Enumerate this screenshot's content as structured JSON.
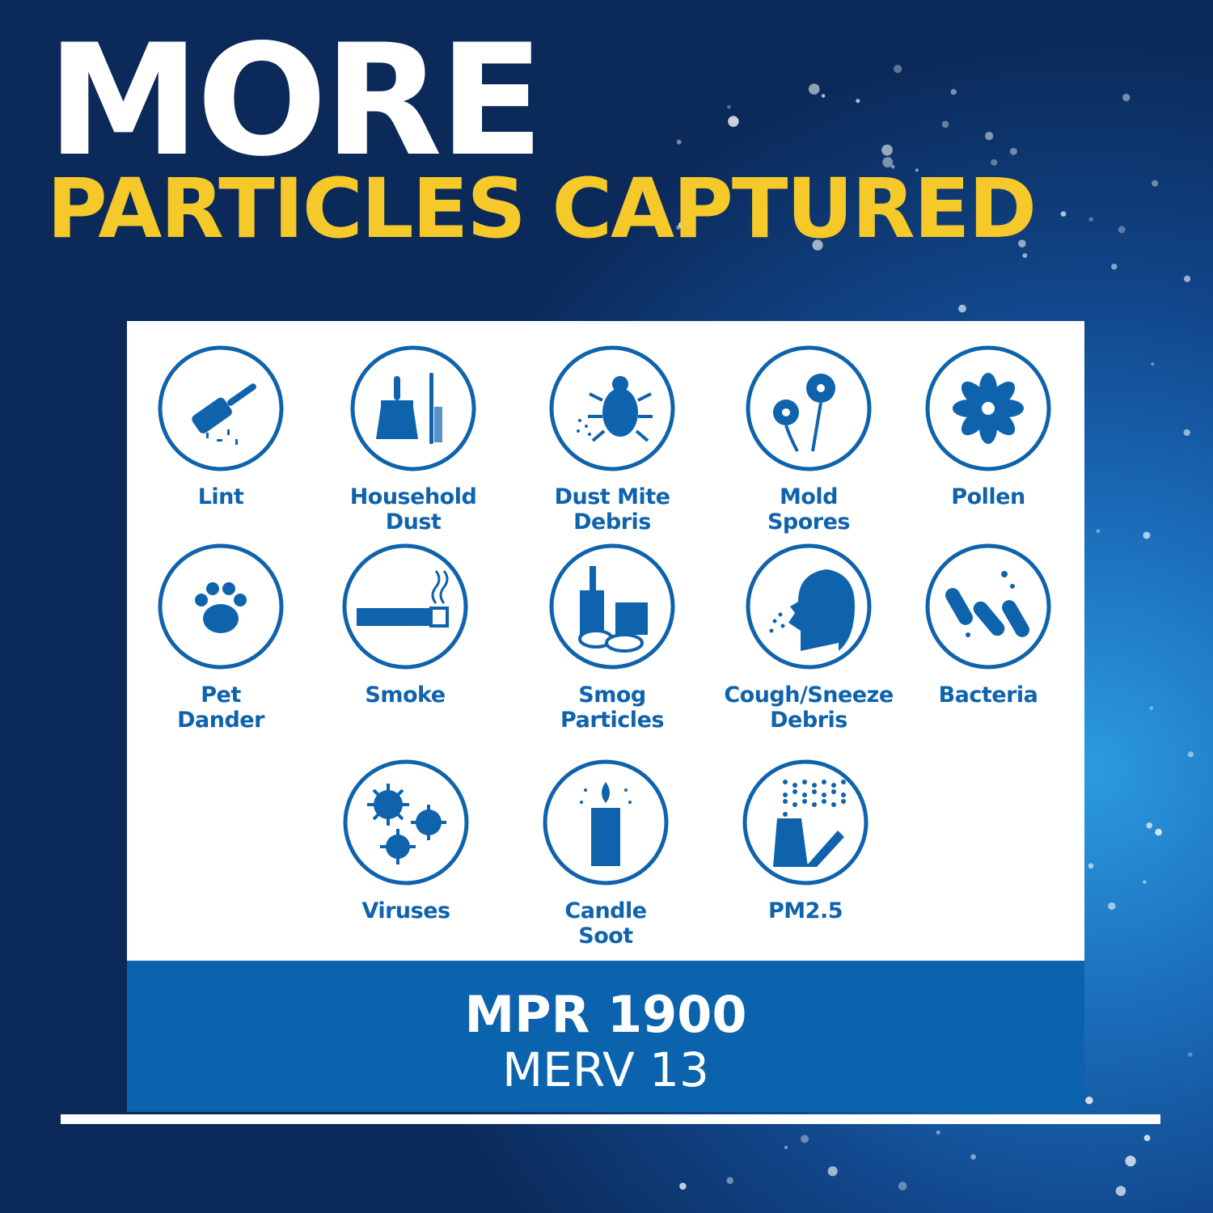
{
  "headline": {
    "line1": "MORE",
    "line2": "PARTICLES CAPTURED"
  },
  "colors": {
    "icon_blue": "#0f63ac",
    "accent_yellow": "#f6c92a",
    "band_blue": "#0b62ad"
  },
  "particles": [
    {
      "label1": "Lint",
      "label2": "",
      "icon": "lint-roller-icon"
    },
    {
      "label1": "Household",
      "label2": "Dust",
      "icon": "dustpan-brush-icon"
    },
    {
      "label1": "Dust Mite",
      "label2": "Debris",
      "icon": "dust-mite-icon"
    },
    {
      "label1": "Mold",
      "label2": "Spores",
      "icon": "mold-flowers-icon"
    },
    {
      "label1": "Pollen",
      "label2": "",
      "icon": "pollen-flower-icon"
    },
    {
      "label1": "Pet",
      "label2": "Dander",
      "icon": "paw-print-icon"
    },
    {
      "label1": "Smoke",
      "label2": "",
      "icon": "cigarette-icon"
    },
    {
      "label1": "Smog",
      "label2": "Particles",
      "icon": "smog-city-icon"
    },
    {
      "label1": "Cough/Sneeze",
      "label2": "Debris",
      "icon": "sneeze-face-icon"
    },
    {
      "label1": "Bacteria",
      "label2": "",
      "icon": "bacteria-icon"
    },
    {
      "label1": "Viruses",
      "label2": "",
      "icon": "virus-icon"
    },
    {
      "label1": "Candle",
      "label2": "Soot",
      "icon": "candle-icon"
    },
    {
      "label1": "PM2.5",
      "label2": "",
      "icon": "smokestack-icon"
    }
  ],
  "rating": {
    "mpr": "MPR 1900",
    "merv": "MERV 13"
  }
}
